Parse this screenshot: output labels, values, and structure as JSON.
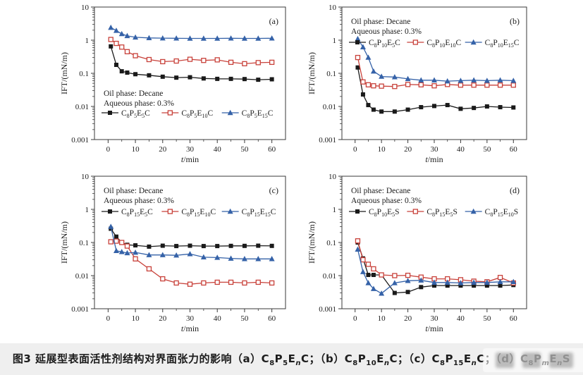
{
  "page": {
    "caption": "图3  延展型表面活性剂结构对界面张力的影响（a）C₈P₅EₙC；（b）C₈P₁₀EₙC；（c）C₈P₁₅EₙC；（d）C₈PₘEₙS"
  },
  "colors": {
    "black_series": "#1a1a1a",
    "red_series": "#c8413a",
    "blue_series": "#3562a8",
    "axis": "#3a3a3a",
    "text": "#1c1c1c",
    "caption_bg": "#efefef"
  },
  "chart_data": [
    {
      "type": "line",
      "panel": "(a)",
      "xlabel": "t/min",
      "ylabel": "IFT/(mN/m)",
      "xlim": [
        -5,
        65
      ],
      "ylim_log": [
        0.001,
        10
      ],
      "x_ticks": [
        0,
        10,
        20,
        30,
        40,
        50,
        60
      ],
      "x_minor_ticks": [
        5,
        15,
        25,
        35,
        45,
        55
      ],
      "note_lines": [
        "Oil phase: Decane",
        "Aqueous phase: 0.3%"
      ],
      "note_position": "bottom-left",
      "x": [
        1,
        3,
        5,
        7,
        10,
        15,
        20,
        25,
        30,
        35,
        40,
        45,
        50,
        55,
        60
      ],
      "series": [
        {
          "name": "C₈P₅E₅C",
          "color": "#1a1a1a",
          "marker": "square-filled",
          "values": [
            0.65,
            0.18,
            0.115,
            0.105,
            0.094,
            0.087,
            0.079,
            0.074,
            0.076,
            0.07,
            0.068,
            0.068,
            0.067,
            0.064,
            0.066
          ]
        },
        {
          "name": "C₈P₅E₁₀C",
          "color": "#c8413a",
          "marker": "square-open",
          "values": [
            1.05,
            0.8,
            0.62,
            0.45,
            0.34,
            0.26,
            0.225,
            0.235,
            0.265,
            0.245,
            0.255,
            0.215,
            0.195,
            0.21,
            0.215
          ]
        },
        {
          "name": "C₈P₅E₁₅C",
          "color": "#3562a8",
          "marker": "triangle-filled",
          "values": [
            2.4,
            1.95,
            1.55,
            1.35,
            1.22,
            1.17,
            1.15,
            1.14,
            1.13,
            1.13,
            1.13,
            1.14,
            1.13,
            1.13,
            1.14
          ]
        }
      ]
    },
    {
      "type": "line",
      "panel": "(b)",
      "xlabel": "t/min",
      "ylabel": "IFT/(mN/m)",
      "xlim": [
        -5,
        65
      ],
      "ylim_log": [
        0.001,
        10
      ],
      "x_ticks": [
        0,
        10,
        20,
        30,
        40,
        50,
        60
      ],
      "x_minor_ticks": [
        5,
        15,
        25,
        35,
        45,
        55
      ],
      "note_lines": [
        "Oil phase: Decane",
        "Aqueous phase: 0.3%"
      ],
      "note_position": "top-left",
      "x": [
        1,
        3,
        5,
        7,
        10,
        15,
        20,
        25,
        30,
        35,
        40,
        45,
        50,
        55,
        60
      ],
      "series": [
        {
          "name": "C₈P₁₀E₅C",
          "color": "#1a1a1a",
          "marker": "square-filled",
          "values": [
            0.15,
            0.023,
            0.011,
            0.008,
            0.007,
            0.007,
            0.008,
            0.0095,
            0.0103,
            0.011,
            0.0085,
            0.009,
            0.01,
            0.0095,
            0.0093
          ]
        },
        {
          "name": "C₈P₁₀E₁₀C",
          "color": "#c8413a",
          "marker": "square-open",
          "values": [
            0.3,
            0.055,
            0.045,
            0.042,
            0.041,
            0.04,
            0.046,
            0.045,
            0.042,
            0.046,
            0.044,
            0.044,
            0.044,
            0.044,
            0.044
          ]
        },
        {
          "name": "C₈P₁₀E₁₅C",
          "color": "#3562a8",
          "marker": "triangle-filled",
          "values": [
            1.1,
            0.62,
            0.3,
            0.115,
            0.08,
            0.077,
            0.068,
            0.062,
            0.062,
            0.058,
            0.06,
            0.062,
            0.06,
            0.062,
            0.06
          ]
        }
      ]
    },
    {
      "type": "line",
      "panel": "(c)",
      "xlabel": "t/min",
      "ylabel": "IFT/(mN/m)",
      "xlim": [
        -5,
        65
      ],
      "ylim_log": [
        0.001,
        10
      ],
      "x_ticks": [
        0,
        10,
        20,
        30,
        40,
        50,
        60
      ],
      "x_minor_ticks": [
        5,
        15,
        25,
        35,
        45,
        55
      ],
      "note_lines": [
        "Oil phase: Decane",
        "Aqueous phase: 0.3%"
      ],
      "note_position": "top-left",
      "x": [
        1,
        3,
        5,
        7,
        10,
        15,
        20,
        25,
        30,
        35,
        40,
        45,
        50,
        55,
        60
      ],
      "series": [
        {
          "name": "C₈P₁₅E₅C",
          "color": "#1a1a1a",
          "marker": "square-filled",
          "values": [
            0.26,
            0.15,
            0.1,
            0.085,
            0.082,
            0.075,
            0.08,
            0.078,
            0.08,
            0.078,
            0.078,
            0.079,
            0.079,
            0.08,
            0.079
          ]
        },
        {
          "name": "C₈P₁₅E₁₀C",
          "color": "#c8413a",
          "marker": "square-open",
          "values": [
            0.105,
            0.11,
            0.1,
            0.078,
            0.032,
            0.016,
            0.008,
            0.006,
            0.0055,
            0.006,
            0.0063,
            0.0063,
            0.006,
            0.0063,
            0.006
          ]
        },
        {
          "name": "C₈P₁₅E₁₅C",
          "color": "#3562a8",
          "marker": "triangle-filled",
          "values": [
            0.3,
            0.056,
            0.052,
            0.048,
            0.05,
            0.042,
            0.042,
            0.041,
            0.045,
            0.036,
            0.035,
            0.033,
            0.032,
            0.032,
            0.032
          ]
        }
      ]
    },
    {
      "type": "line",
      "panel": "(d)",
      "xlabel": "t/min",
      "ylabel": "IFT/(mN/m)",
      "xlim": [
        -5,
        65
      ],
      "ylim_log": [
        0.001,
        10
      ],
      "x_ticks": [
        0,
        10,
        20,
        30,
        40,
        50,
        60
      ],
      "x_minor_ticks": [
        5,
        15,
        25,
        35,
        45,
        55
      ],
      "note_lines": [
        "Oil phase: Decane",
        "Aqueous phase: 0.3%"
      ],
      "note_position": "top-left",
      "x": [
        1,
        3,
        5,
        7,
        10,
        15,
        20,
        25,
        30,
        35,
        40,
        45,
        50,
        55,
        60
      ],
      "series": [
        {
          "name": "C₈P₁₀E₅S",
          "color": "#1a1a1a",
          "marker": "square-filled",
          "values": [
            0.1,
            0.033,
            0.0105,
            0.0105,
            0.0105,
            0.003,
            0.0032,
            0.0045,
            0.005,
            0.005,
            0.005,
            0.005,
            0.005,
            0.005,
            0.0052
          ]
        },
        {
          "name": "C₈P₁₅E₅S",
          "color": "#c8413a",
          "marker": "square-open",
          "values": [
            0.112,
            0.03,
            0.022,
            0.016,
            0.0105,
            0.01,
            0.0102,
            0.009,
            0.008,
            0.008,
            0.0075,
            0.0068,
            0.0065,
            0.0088,
            0.006
          ]
        },
        {
          "name": "C₈P₁₅E₁₀S",
          "color": "#3562a8",
          "marker": "triangle-filled",
          "values": [
            0.062,
            0.013,
            0.006,
            0.004,
            0.0029,
            0.006,
            0.007,
            0.0072,
            0.0062,
            0.0062,
            0.006,
            0.0062,
            0.0062,
            0.0065,
            0.0065
          ]
        }
      ]
    }
  ]
}
